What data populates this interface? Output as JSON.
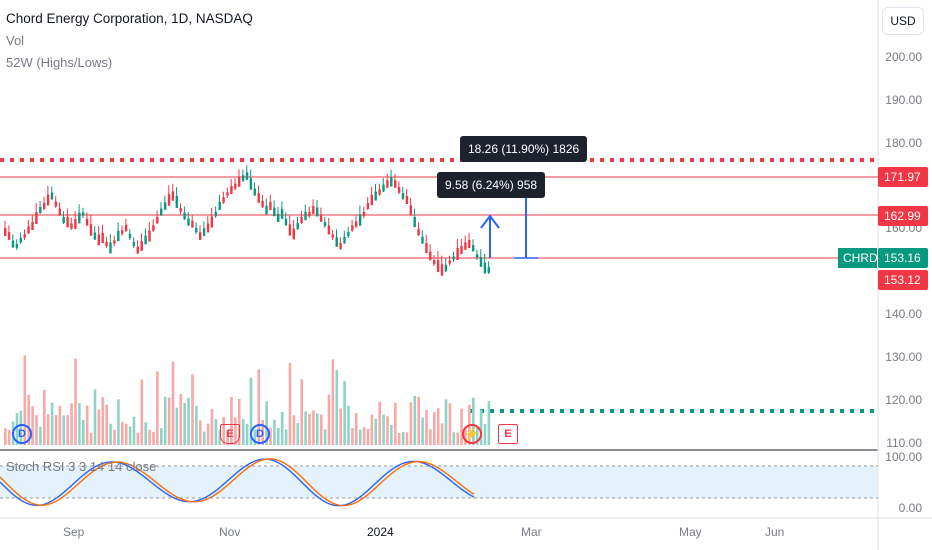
{
  "chart_header": {
    "symbol_line": "Chord Energy Corporation, 1D, NASDAQ",
    "vol_label": "Vol",
    "indicator_label": "52W (Highs/Lows)",
    "stoch_label": "Stoch RSI 3 3 14 14 close"
  },
  "currency_button": "USD",
  "price_axis": {
    "ticks": [
      "200.00",
      "190.00",
      "180.00",
      "160.00",
      "140.00",
      "130.00",
      "120.00",
      "110.00"
    ],
    "ticks_stoch": [
      "100.00",
      "0.00"
    ]
  },
  "price_labels": [
    {
      "value": "171.97",
      "color": "#f23645"
    },
    {
      "value": "162.99",
      "color": "#f23645"
    },
    {
      "value": "153.12",
      "color": "#f23645"
    }
  ],
  "symbol_badge": {
    "ticker": "CHRD",
    "value": "153.16",
    "color": "#089981"
  },
  "measure_boxes": [
    {
      "text": "18.26 (11.90%) 1826"
    },
    {
      "text": "9.58 (6.24%) 958"
    }
  ],
  "event_markers": [
    "D",
    "E",
    "D",
    "E"
  ],
  "time_axis": [
    "Sep",
    "Nov",
    "2024",
    "Mar",
    "May",
    "Jun"
  ],
  "colors": {
    "up": "#089981",
    "down": "#f23645",
    "accent_blue": "#2962ff",
    "stoch_k": "#2962ff",
    "stoch_d": "#ff6d00",
    "band": "#e3f2fd"
  }
}
